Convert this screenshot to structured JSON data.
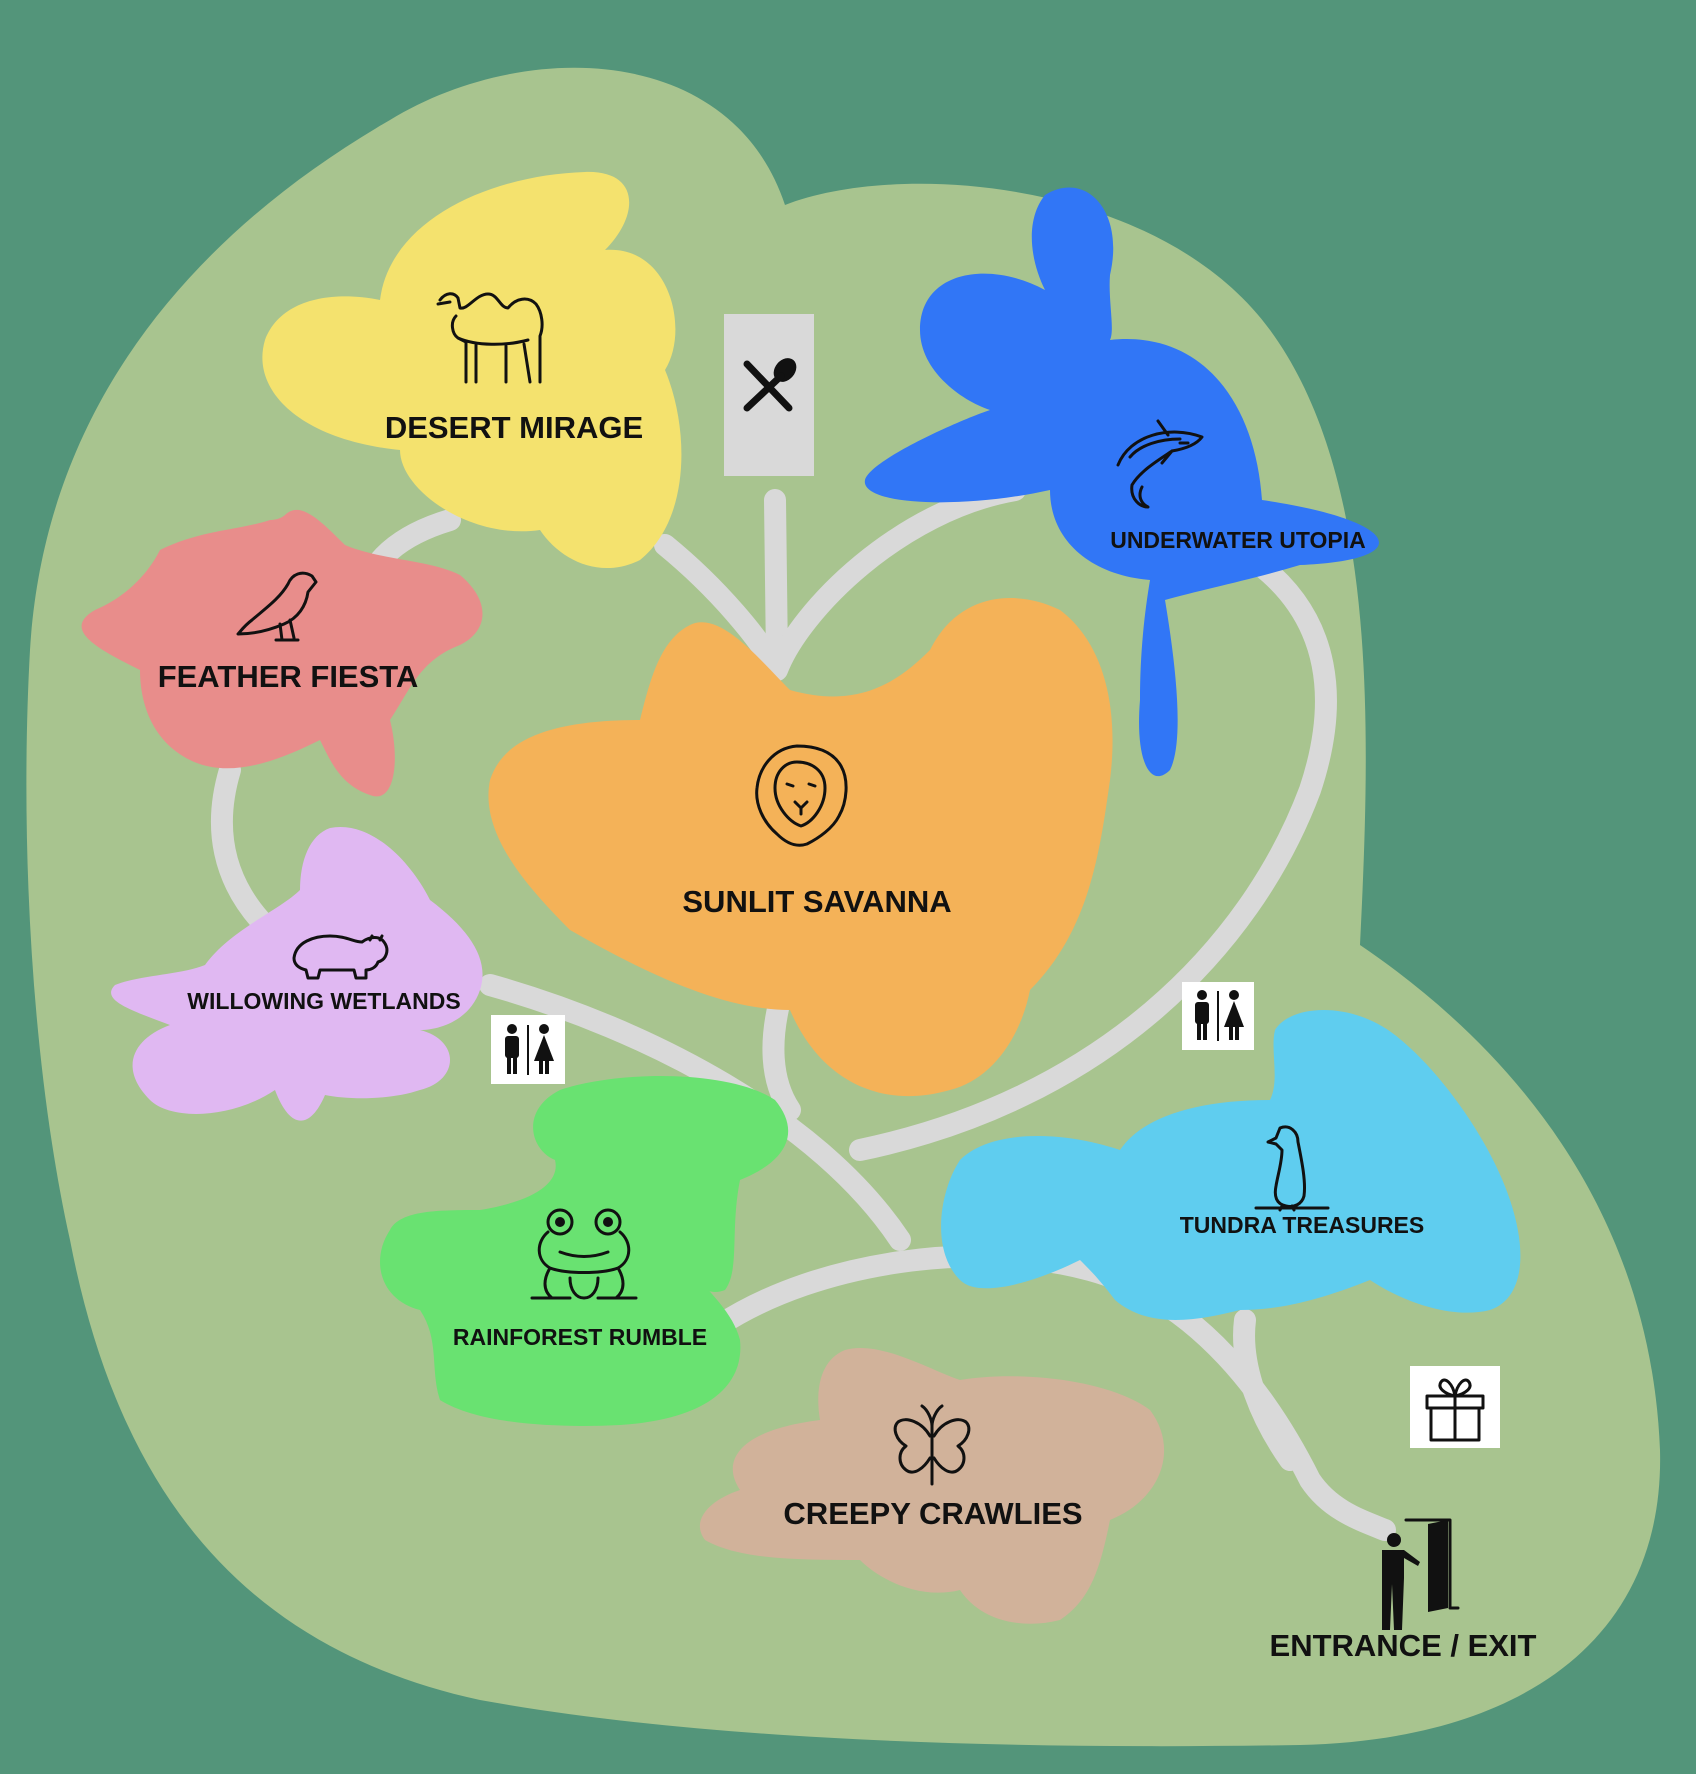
{
  "colors": {
    "background": "#53957a",
    "park": "#a8c48f",
    "path": "#d9d9d9",
    "desert": "#f4e26e",
    "underwater": "#3176f6",
    "feather": "#e88d8b",
    "savanna": "#f4b258",
    "wetlands": "#e0b8f2",
    "rainforest": "#69e271",
    "tundra": "#5fcdef",
    "creepy": "#d1b29a",
    "facility_box": "#ffffff",
    "food_box": "#d9d9d9"
  },
  "zones": [
    {
      "id": "desert",
      "label": "DESERT MIRAGE",
      "icon": "camel-icon"
    },
    {
      "id": "underwater",
      "label": "UNDERWATER UTOPIA",
      "icon": "shark-icon"
    },
    {
      "id": "feather",
      "label": "FEATHER FIESTA",
      "icon": "bird-icon"
    },
    {
      "id": "savanna",
      "label": "SUNLIT SAVANNA",
      "icon": "lion-icon"
    },
    {
      "id": "wetlands",
      "label": "WILLOWING WETLANDS",
      "icon": "hippo-icon"
    },
    {
      "id": "rainforest",
      "label": "RAINFOREST RUMBLE",
      "icon": "frog-icon"
    },
    {
      "id": "tundra",
      "label": "TUNDRA TREASURES",
      "icon": "penguin-icon"
    },
    {
      "id": "creepy",
      "label": "CREEPY CRAWLIES",
      "icon": "butterfly-icon"
    }
  ],
  "facilities": [
    {
      "id": "food",
      "icon": "utensils-icon"
    },
    {
      "id": "restroom-left",
      "icon": "restroom-icon"
    },
    {
      "id": "restroom-right",
      "icon": "restroom-icon"
    },
    {
      "id": "gift-shop",
      "icon": "gift-icon"
    }
  ],
  "entrance": {
    "label": "ENTRANCE / EXIT",
    "icon": "door-exit-icon"
  }
}
